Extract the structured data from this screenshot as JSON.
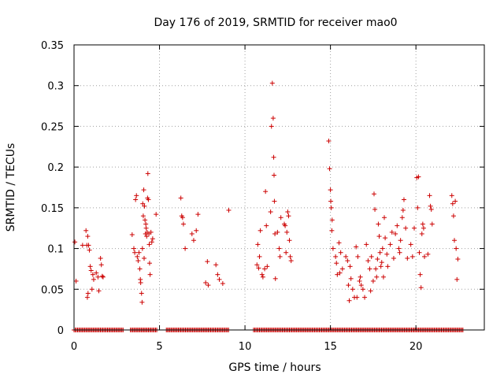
{
  "chart_data": {
    "type": "scatter",
    "title": "Day 176 of 2019, SRMTID for receiver mao0",
    "xlabel": "GPS time / hours",
    "ylabel": "SRMTID / TECUs",
    "xlim": [
      0,
      24
    ],
    "ylim": [
      0,
      0.35
    ],
    "x_ticks": [
      0,
      5,
      10,
      15,
      20
    ],
    "x_tick_labels": [
      "0",
      "5",
      "10",
      "15",
      "20"
    ],
    "y_ticks": [
      0,
      0.05,
      0.1,
      0.15,
      0.2,
      0.25,
      0.3,
      0.35
    ],
    "y_tick_labels": [
      "0",
      "0.05",
      "0.1",
      "0.15",
      "0.2",
      "0.25",
      "0.3",
      "0.35"
    ],
    "grid": true,
    "marker": "+",
    "color": "#cc0000",
    "series": [
      {
        "name": "SRMTID",
        "points": [
          [
            0.05,
            0.108
          ],
          [
            0.12,
            0.06
          ],
          [
            0.5,
            0.104
          ],
          [
            0.7,
            0.122
          ],
          [
            0.75,
            0.104
          ],
          [
            0.8,
            0.115
          ],
          [
            0.85,
            0.104
          ],
          [
            0.9,
            0.098
          ],
          [
            0.78,
            0.04
          ],
          [
            0.82,
            0.045
          ],
          [
            0.95,
            0.078
          ],
          [
            1.0,
            0.073
          ],
          [
            1.05,
            0.05
          ],
          [
            1.1,
            0.068
          ],
          [
            1.15,
            0.062
          ],
          [
            1.3,
            0.07
          ],
          [
            1.4,
            0.065
          ],
          [
            1.45,
            0.048
          ],
          [
            1.55,
            0.088
          ],
          [
            1.6,
            0.08
          ],
          [
            1.65,
            0.066
          ],
          [
            1.7,
            0.065
          ],
          [
            3.4,
            0.117
          ],
          [
            3.5,
            0.1
          ],
          [
            3.55,
            0.095
          ],
          [
            3.6,
            0.16
          ],
          [
            3.65,
            0.165
          ],
          [
            3.7,
            0.09
          ],
          [
            3.75,
            0.085
          ],
          [
            3.8,
            0.095
          ],
          [
            3.85,
            0.075
          ],
          [
            3.88,
            0.062
          ],
          [
            3.9,
            0.058
          ],
          [
            3.95,
            0.045
          ],
          [
            3.98,
            0.034
          ],
          [
            4.0,
            0.1
          ],
          [
            4.02,
            0.155
          ],
          [
            4.05,
            0.14
          ],
          [
            4.08,
            0.172
          ],
          [
            4.1,
            0.088
          ],
          [
            4.12,
            0.152
          ],
          [
            4.15,
            0.135
          ],
          [
            4.18,
            0.118
          ],
          [
            4.2,
            0.13
          ],
          [
            4.22,
            0.125
          ],
          [
            4.25,
            0.115
          ],
          [
            4.28,
            0.12
          ],
          [
            4.3,
            0.162
          ],
          [
            4.32,
            0.192
          ],
          [
            4.35,
            0.16
          ],
          [
            4.38,
            0.118
          ],
          [
            4.4,
            0.105
          ],
          [
            4.42,
            0.082
          ],
          [
            4.45,
            0.068
          ],
          [
            4.5,
            0.12
          ],
          [
            4.55,
            0.108
          ],
          [
            4.6,
            0.112
          ],
          [
            4.8,
            0.142
          ],
          [
            6.25,
            0.162
          ],
          [
            6.3,
            0.14
          ],
          [
            6.35,
            0.138
          ],
          [
            6.4,
            0.13
          ],
          [
            6.5,
            0.1
          ],
          [
            6.9,
            0.118
          ],
          [
            7.0,
            0.11
          ],
          [
            7.15,
            0.122
          ],
          [
            7.25,
            0.142
          ],
          [
            7.7,
            0.058
          ],
          [
            7.8,
            0.084
          ],
          [
            7.85,
            0.055
          ],
          [
            8.3,
            0.08
          ],
          [
            8.4,
            0.068
          ],
          [
            8.5,
            0.062
          ],
          [
            8.7,
            0.057
          ],
          [
            9.05,
            0.147
          ],
          [
            10.7,
            0.08
          ],
          [
            10.75,
            0.105
          ],
          [
            10.8,
            0.076
          ],
          [
            10.85,
            0.09
          ],
          [
            10.9,
            0.122
          ],
          [
            11.0,
            0.068
          ],
          [
            11.05,
            0.065
          ],
          [
            11.15,
            0.075
          ],
          [
            11.2,
            0.17
          ],
          [
            11.25,
            0.128
          ],
          [
            11.3,
            0.078
          ],
          [
            11.5,
            0.145
          ],
          [
            11.55,
            0.25
          ],
          [
            11.6,
            0.303
          ],
          [
            11.65,
            0.26
          ],
          [
            11.68,
            0.212
          ],
          [
            11.7,
            0.19
          ],
          [
            11.72,
            0.158
          ],
          [
            11.75,
            0.118
          ],
          [
            11.78,
            0.063
          ],
          [
            11.9,
            0.12
          ],
          [
            12.0,
            0.1
          ],
          [
            12.05,
            0.09
          ],
          [
            12.1,
            0.138
          ],
          [
            12.3,
            0.13
          ],
          [
            12.35,
            0.128
          ],
          [
            12.4,
            0.095
          ],
          [
            12.45,
            0.12
          ],
          [
            12.5,
            0.145
          ],
          [
            12.55,
            0.14
          ],
          [
            12.6,
            0.11
          ],
          [
            12.65,
            0.09
          ],
          [
            12.7,
            0.085
          ],
          [
            14.9,
            0.232
          ],
          [
            14.95,
            0.198
          ],
          [
            15.0,
            0.172
          ],
          [
            15.02,
            0.158
          ],
          [
            15.05,
            0.15
          ],
          [
            15.08,
            0.122
          ],
          [
            15.1,
            0.135
          ],
          [
            15.15,
            0.1
          ],
          [
            15.3,
            0.09
          ],
          [
            15.35,
            0.082
          ],
          [
            15.4,
            0.068
          ],
          [
            15.5,
            0.107
          ],
          [
            15.55,
            0.07
          ],
          [
            15.6,
            0.095
          ],
          [
            15.7,
            0.075
          ],
          [
            15.9,
            0.09
          ],
          [
            16.0,
            0.085
          ],
          [
            16.05,
            0.055
          ],
          [
            16.1,
            0.036
          ],
          [
            16.15,
            0.078
          ],
          [
            16.2,
            0.063
          ],
          [
            16.3,
            0.05
          ],
          [
            16.4,
            0.04
          ],
          [
            16.5,
            0.102
          ],
          [
            16.55,
            0.04
          ],
          [
            16.6,
            0.09
          ],
          [
            16.7,
            0.06
          ],
          [
            16.75,
            0.065
          ],
          [
            16.8,
            0.055
          ],
          [
            16.9,
            0.05
          ],
          [
            17.0,
            0.04
          ],
          [
            17.1,
            0.105
          ],
          [
            17.2,
            0.085
          ],
          [
            17.3,
            0.075
          ],
          [
            17.35,
            0.048
          ],
          [
            17.4,
            0.09
          ],
          [
            17.5,
            0.06
          ],
          [
            17.55,
            0.167
          ],
          [
            17.6,
            0.148
          ],
          [
            17.65,
            0.075
          ],
          [
            17.7,
            0.065
          ],
          [
            17.75,
            0.087
          ],
          [
            17.8,
            0.13
          ],
          [
            17.85,
            0.115
          ],
          [
            17.9,
            0.095
          ],
          [
            17.95,
            0.078
          ],
          [
            18.0,
            0.083
          ],
          [
            18.05,
            0.1
          ],
          [
            18.1,
            0.065
          ],
          [
            18.15,
            0.138
          ],
          [
            18.2,
            0.113
          ],
          [
            18.3,
            0.093
          ],
          [
            18.35,
            0.078
          ],
          [
            18.5,
            0.105
          ],
          [
            18.6,
            0.12
          ],
          [
            18.7,
            0.088
          ],
          [
            18.8,
            0.118
          ],
          [
            18.9,
            0.128
          ],
          [
            19.0,
            0.1
          ],
          [
            19.05,
            0.095
          ],
          [
            19.1,
            0.11
          ],
          [
            19.2,
            0.138
          ],
          [
            19.25,
            0.147
          ],
          [
            19.3,
            0.16
          ],
          [
            19.4,
            0.125
          ],
          [
            19.5,
            0.088
          ],
          [
            19.7,
            0.105
          ],
          [
            19.8,
            0.09
          ],
          [
            19.9,
            0.125
          ],
          [
            20.05,
            0.187
          ],
          [
            20.1,
            0.15
          ],
          [
            20.15,
            0.188
          ],
          [
            20.2,
            0.095
          ],
          [
            20.25,
            0.068
          ],
          [
            20.3,
            0.052
          ],
          [
            20.35,
            0.118
          ],
          [
            20.4,
            0.13
          ],
          [
            20.45,
            0.125
          ],
          [
            20.5,
            0.09
          ],
          [
            20.7,
            0.093
          ],
          [
            20.8,
            0.165
          ],
          [
            20.85,
            0.152
          ],
          [
            20.9,
            0.148
          ],
          [
            20.95,
            0.13
          ],
          [
            22.1,
            0.165
          ],
          [
            22.15,
            0.155
          ],
          [
            22.2,
            0.14
          ],
          [
            22.25,
            0.11
          ],
          [
            22.3,
            0.158
          ],
          [
            22.35,
            0.1
          ],
          [
            22.4,
            0.062
          ],
          [
            22.45,
            0.087
          ]
        ],
        "zero_ranges": [
          [
            0.0,
            2.9
          ],
          [
            3.3,
            4.9
          ],
          [
            5.4,
            9.1
          ],
          [
            10.5,
            22.8
          ]
        ]
      }
    ]
  }
}
